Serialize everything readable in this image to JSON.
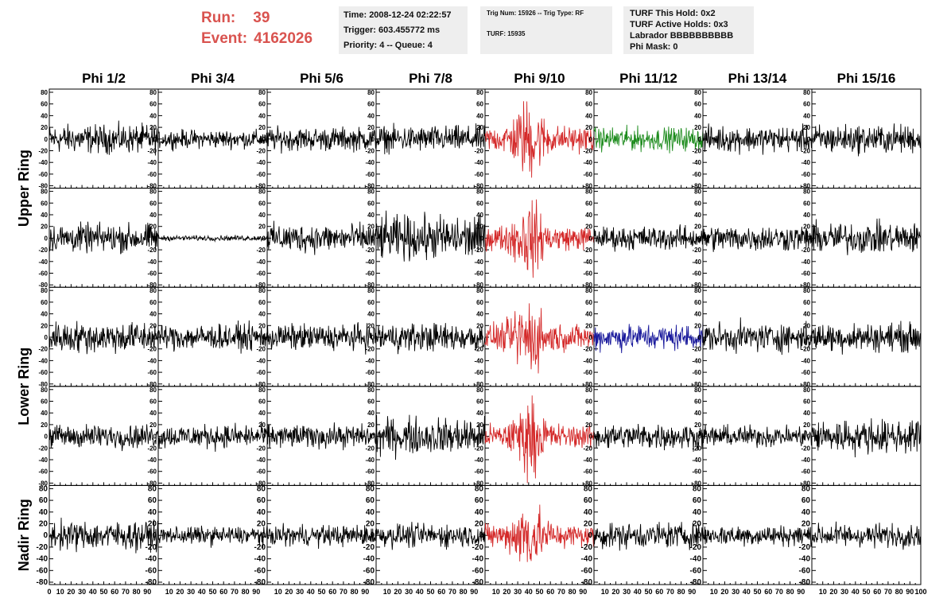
{
  "header": {
    "run_label": "Run:",
    "run_value": "39",
    "event_label": "Event:",
    "event_value": "4162026"
  },
  "info_box_1": {
    "time": "Time: 2008-12-24 02:22:57",
    "trigger": "Trigger: 603.455772 ms",
    "priority_queue": "Priority: 4 -- Queue: 4"
  },
  "info_box_2": {
    "trig": "Trig Num: 15926 -- Trig Type: RF",
    "turf": "TURF: 15935"
  },
  "info_box_3": {
    "this_hold": "TURF This Hold: 0x2",
    "active_holds": "TURF Active Holds: 0x3",
    "labrador": "Labrador BBBBBBBBBB",
    "phi_mask": "Phi Mask: 0"
  },
  "chart_data": {
    "type": "line",
    "column_labels": [
      "Phi 1/2",
      "Phi 3/4",
      "Phi 5/6",
      "Phi 7/8",
      "Phi 9/10",
      "Phi 11/12",
      "Phi 13/14",
      "Phi 15/16"
    ],
    "row_labels": [
      {
        "text": "Upper Ring",
        "rows": [
          0,
          1
        ]
      },
      {
        "text": "Lower Ring",
        "rows": [
          2,
          3
        ]
      },
      {
        "text": "Nadir Ring",
        "rows": [
          4
        ]
      }
    ],
    "ylim": [
      -80,
      80
    ],
    "y_ticks": [
      -80,
      -60,
      -40,
      -20,
      0,
      20,
      40,
      60,
      80
    ],
    "xlim": [
      0,
      100
    ],
    "x_ticks": [
      0,
      10,
      20,
      30,
      40,
      50,
      60,
      70,
      80,
      90,
      100
    ],
    "colors": {
      "default": "#000000",
      "red": "#d42a2a",
      "green": "#1e8c1e",
      "blue": "#1a1a9c"
    },
    "panels": [
      [
        {
          "color": "default",
          "amp": 11,
          "pulse": 0
        },
        {
          "color": "default",
          "amp": 7,
          "pulse": 0
        },
        {
          "color": "default",
          "amp": 9,
          "pulse": 0
        },
        {
          "color": "default",
          "amp": 10,
          "pulse": 0
        },
        {
          "color": "red",
          "amp": 14,
          "pulse": 1
        },
        {
          "color": "green",
          "amp": 9,
          "pulse": 0
        },
        {
          "color": "default",
          "amp": 10,
          "pulse": 0
        },
        {
          "color": "default",
          "amp": 11,
          "pulse": 0
        }
      ],
      [
        {
          "color": "default",
          "amp": 11,
          "pulse": 0
        },
        {
          "color": "default",
          "amp": 2,
          "pulse": 0
        },
        {
          "color": "default",
          "amp": 11,
          "pulse": 0
        },
        {
          "color": "default",
          "amp": 17,
          "pulse": 0
        },
        {
          "color": "red",
          "amp": 13,
          "pulse": 1
        },
        {
          "color": "default",
          "amp": 9,
          "pulse": 0
        },
        {
          "color": "default",
          "amp": 10,
          "pulse": 0
        },
        {
          "color": "default",
          "amp": 12,
          "pulse": 0
        }
      ],
      [
        {
          "color": "default",
          "amp": 12,
          "pulse": 0
        },
        {
          "color": "default",
          "amp": 10,
          "pulse": 0
        },
        {
          "color": "default",
          "amp": 10,
          "pulse": 0
        },
        {
          "color": "default",
          "amp": 11,
          "pulse": 0
        },
        {
          "color": "red",
          "amp": 14,
          "pulse": 1
        },
        {
          "color": "blue",
          "amp": 10,
          "pulse": 0
        },
        {
          "color": "default",
          "amp": 11,
          "pulse": 0
        },
        {
          "color": "default",
          "amp": 11,
          "pulse": 0
        }
      ],
      [
        {
          "color": "default",
          "amp": 9,
          "pulse": 0
        },
        {
          "color": "default",
          "amp": 9,
          "pulse": 0
        },
        {
          "color": "default",
          "amp": 9,
          "pulse": 0
        },
        {
          "color": "default",
          "amp": 14,
          "pulse": 0
        },
        {
          "color": "red",
          "amp": 13,
          "pulse": 1
        },
        {
          "color": "default",
          "amp": 10,
          "pulse": 0
        },
        {
          "color": "default",
          "amp": 8,
          "pulse": 0
        },
        {
          "color": "default",
          "amp": 13,
          "pulse": 0
        }
      ],
      [
        {
          "color": "default",
          "amp": 11,
          "pulse": 0
        },
        {
          "color": "default",
          "amp": 7,
          "pulse": 0
        },
        {
          "color": "default",
          "amp": 8,
          "pulse": 0
        },
        {
          "color": "default",
          "amp": 9,
          "pulse": 0
        },
        {
          "color": "red",
          "amp": 13,
          "pulse": 1
        },
        {
          "color": "default",
          "amp": 10,
          "pulse": 0
        },
        {
          "color": "default",
          "amp": 8,
          "pulse": 0
        },
        {
          "color": "default",
          "amp": 9,
          "pulse": 0
        }
      ]
    ]
  }
}
